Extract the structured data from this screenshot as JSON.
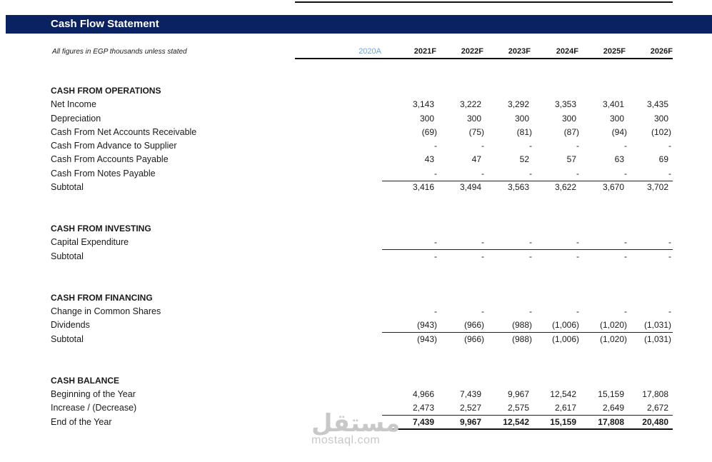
{
  "title": "Cash Flow Statement",
  "subtitle": "All figures in EGP thousands unless stated",
  "columns": [
    "2020A",
    "2021F",
    "2022F",
    "2023F",
    "2024F",
    "2025F",
    "2026F"
  ],
  "operations": {
    "heading": "CASH FROM OPERATIONS",
    "rows": [
      {
        "label": "Net Income",
        "values": [
          "3,143",
          "3,222",
          "3,292",
          "3,353",
          "3,401",
          "3,435"
        ]
      },
      {
        "label": "Depreciation",
        "values": [
          "300",
          "300",
          "300",
          "300",
          "300",
          "300"
        ]
      },
      {
        "label": "Cash From Net Accounts Receivable",
        "values": [
          "(69)",
          "(75)",
          "(81)",
          "(87)",
          "(94)",
          "(102)"
        ]
      },
      {
        "label": "Cash From Advance to Supplier",
        "values": [
          "-",
          "-",
          "-",
          "-",
          "-",
          "-"
        ]
      },
      {
        "label": "Cash From Accounts Payable",
        "values": [
          "43",
          "47",
          "52",
          "57",
          "63",
          "69"
        ]
      },
      {
        "label": "Cash From Notes Payable",
        "values": [
          "-",
          "-",
          "-",
          "-",
          "-",
          "-"
        ]
      },
      {
        "label": "Subtotal",
        "values": [
          "3,416",
          "3,494",
          "3,563",
          "3,622",
          "3,670",
          "3,702"
        ]
      }
    ]
  },
  "investing": {
    "heading": "CASH FROM INVESTING",
    "rows": [
      {
        "label": "Capital Expenditure",
        "values": [
          "-",
          "-",
          "-",
          "-",
          "-",
          "-"
        ]
      },
      {
        "label": "Subtotal",
        "values": [
          "-",
          "-",
          "-",
          "-",
          "-",
          "-"
        ]
      }
    ]
  },
  "financing": {
    "heading": "CASH FROM FINANCING",
    "rows": [
      {
        "label": "Change in Common Shares",
        "values": [
          "-",
          "-",
          "-",
          "-",
          "-",
          "-"
        ]
      },
      {
        "label": "Dividends",
        "values": [
          "(943)",
          "(966)",
          "(988)",
          "(1,006)",
          "(1,020)",
          "(1,031)"
        ]
      },
      {
        "label": "Subtotal",
        "values": [
          "(943)",
          "(966)",
          "(988)",
          "(1,006)",
          "(1,020)",
          "(1,031)"
        ]
      }
    ]
  },
  "balance": {
    "heading": "CASH BALANCE",
    "rows": [
      {
        "label": "Beginning of the Year",
        "values": [
          "4,966",
          "7,439",
          "9,967",
          "12,542",
          "15,159",
          "17,808"
        ]
      },
      {
        "label": "Increase / (Decrease)",
        "values": [
          "2,473",
          "2,527",
          "2,575",
          "2,617",
          "2,649",
          "2,672"
        ]
      },
      {
        "label": "End of the Year",
        "values": [
          "7,439",
          "9,967",
          "12,542",
          "15,159",
          "17,808",
          "20,480"
        ]
      }
    ]
  },
  "watermark": {
    "arabic": "مستقل",
    "latin": "mostaql.com"
  },
  "colors": {
    "title_bar": "#0b2262",
    "actual_header": "#6ea3d8"
  }
}
